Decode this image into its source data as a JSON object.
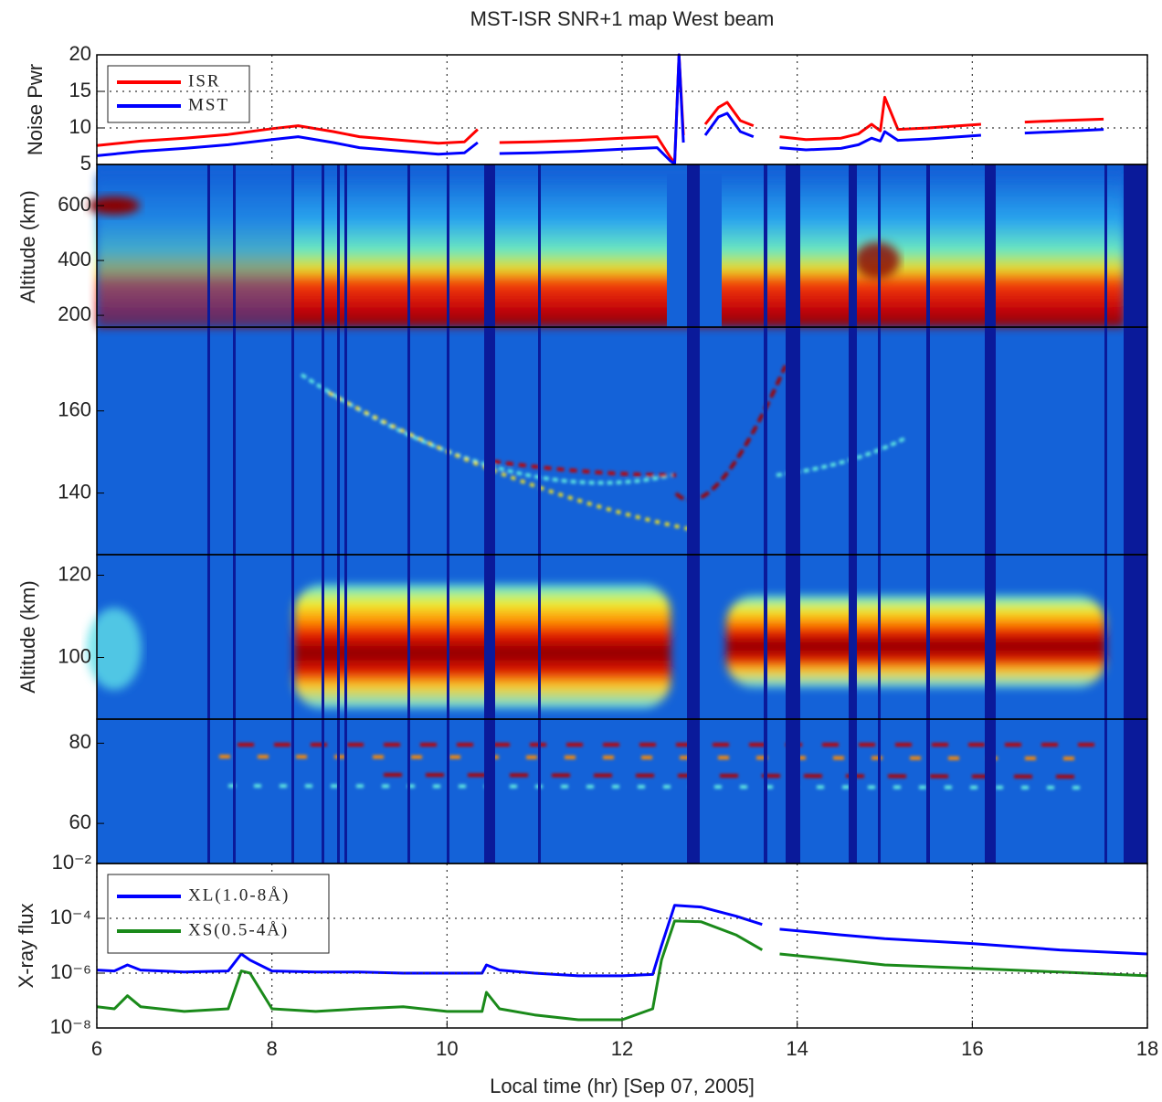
{
  "chart_data": [
    {
      "type": "line",
      "title": "MST-ISR SNR+1 map West beam",
      "ylabel": "Noise Pwr",
      "xlim": [
        6,
        18
      ],
      "ylim": [
        5,
        20
      ],
      "yticks": [
        5,
        10,
        15,
        20
      ],
      "grid": true,
      "legend": "upper left",
      "x": [
        6,
        6.5,
        7,
        7.5,
        8,
        8.3,
        8.7,
        9,
        9.5,
        9.9,
        10.2,
        10.35,
        10.45,
        10.6,
        11,
        11.5,
        12,
        12.4,
        12.55,
        12.6,
        12.65,
        12.7,
        12.8,
        12.95,
        13.1,
        13.2,
        13.35,
        13.5,
        13.6,
        13.8,
        14.1,
        14.5,
        14.7,
        14.85,
        14.95,
        15.0,
        15.15,
        15.5,
        16.1,
        16.2,
        16.6,
        17.0,
        17.5
      ],
      "series": [
        {
          "name": "ISR",
          "color": "#ff0000",
          "values": [
            7.6,
            8.2,
            8.6,
            9.1,
            9.9,
            10.3,
            9.5,
            8.8,
            8.3,
            7.9,
            8.1,
            9.8,
            null,
            8.0,
            8.1,
            8.3,
            8.6,
            8.8,
            6.0,
            5.2,
            20,
            9,
            null,
            10.5,
            12.8,
            13.5,
            11,
            10.3,
            null,
            8.8,
            8.4,
            8.6,
            9.2,
            10.5,
            9.6,
            14.2,
            9.8,
            10.0,
            10.5,
            null,
            10.8,
            11.0,
            11.2
          ]
        },
        {
          "name": "MST",
          "color": "#0000ff",
          "values": [
            6.2,
            6.8,
            7.2,
            7.7,
            8.4,
            8.8,
            8.0,
            7.3,
            6.8,
            6.4,
            6.6,
            8.0,
            null,
            6.5,
            6.6,
            6.8,
            7.1,
            7.3,
            5.5,
            5.1,
            20,
            8,
            null,
            9.0,
            11.5,
            12.0,
            9.5,
            8.8,
            null,
            7.3,
            7.0,
            7.2,
            7.7,
            8.6,
            8.2,
            9.5,
            8.3,
            8.5,
            9.0,
            null,
            9.3,
            9.5,
            9.8
          ]
        }
      ]
    },
    {
      "type": "heatmap",
      "ylabel": "Altitude (km)",
      "ylim": [
        157,
        750
      ],
      "yticks": [
        200,
        400,
        600
      ]
    },
    {
      "type": "heatmap",
      "ylim": [
        125,
        180.4
      ],
      "yticks": [
        140,
        160
      ]
    },
    {
      "type": "heatmap",
      "ylabel": "Altitude (km)",
      "ylim": [
        85,
        125
      ],
      "yticks": [
        100,
        120
      ]
    },
    {
      "type": "heatmap",
      "ylim": [
        50,
        86
      ],
      "yticks": [
        60,
        80
      ]
    },
    {
      "type": "line",
      "ylabel": "X-ray flux",
      "xlabel": "Local time (hr) [Sep 07, 2005]",
      "log_y": true,
      "xlim": [
        6,
        18
      ],
      "xticks": [
        6,
        8,
        10,
        12,
        14,
        16,
        18
      ],
      "ylim": [
        1e-08,
        0.01
      ],
      "yticks": [
        {
          "value": 1e-08,
          "label": "10⁻⁸"
        },
        {
          "value": 1e-06,
          "label": "10⁻⁶"
        },
        {
          "value": 0.0001,
          "label": "10⁻⁴"
        },
        {
          "value": 0.01,
          "label": "10⁻²"
        }
      ],
      "grid": true,
      "legend": "upper left",
      "x": [
        6,
        6.2,
        6.35,
        6.5,
        7,
        7.5,
        7.65,
        7.75,
        8,
        8.5,
        9,
        9.5,
        10,
        10.4,
        10.45,
        10.6,
        11,
        11.5,
        12,
        12.35,
        12.45,
        12.6,
        12.9,
        13.3,
        13.6,
        13.7,
        13.8,
        14.5,
        15,
        16,
        17,
        18
      ],
      "series": [
        {
          "name": "XL(1.0-8Å)",
          "color": "#0000ff",
          "values": [
            1.3e-06,
            1.2e-06,
            2e-06,
            1.3e-06,
            1.1e-06,
            1.2e-06,
            5e-06,
            3e-06,
            1.2e-06,
            1.1e-06,
            1.1e-06,
            1e-06,
            1e-06,
            1e-06,
            2e-06,
            1.3e-06,
            1e-06,
            8e-07,
            8e-07,
            9e-07,
            1e-05,
            0.0003,
            0.00026,
            0.00012,
            6e-05,
            null,
            4e-05,
            2.5e-05,
            1.8e-05,
            1.2e-05,
            7e-06,
            5e-06
          ]
        },
        {
          "name": "XS(0.5-4Å)",
          "color": "#1a8a1a",
          "values": [
            6e-08,
            5e-08,
            1.5e-07,
            6e-08,
            4e-08,
            5e-08,
            1.2e-06,
            1e-06,
            5e-08,
            4e-08,
            5e-08,
            6e-08,
            4e-08,
            4e-08,
            2e-07,
            5e-08,
            3e-08,
            2e-08,
            2e-08,
            5e-08,
            3e-06,
            8e-05,
            7.5e-05,
            2.5e-05,
            7e-06,
            null,
            5e-06,
            3e-06,
            2e-06,
            1.5e-06,
            1.1e-06,
            8e-07
          ]
        }
      ]
    }
  ]
}
